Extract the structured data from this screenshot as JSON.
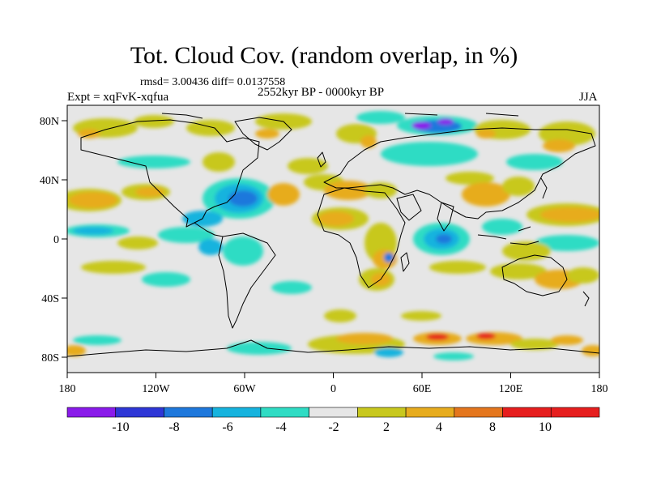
{
  "title": "Tot. Cloud Cov. (random overlap, in %)",
  "stats": "rmsd= 3.00436 diff= 0.0137558",
  "experiment": "Expt = xqFvK-xqfua",
  "period": "2552kyr BP - 0000kyr BP",
  "season": "JJA",
  "lat_ticks": [
    "80N",
    "40N",
    "0",
    "40S",
    "80S"
  ],
  "lon_ticks": [
    "180",
    "120W",
    "60W",
    "0",
    "60E",
    "120E",
    "180"
  ],
  "colorbar": {
    "labels": [
      "-10",
      "-8",
      "-6",
      "-4",
      "-2",
      "2",
      "4",
      "8",
      "10"
    ],
    "colors": [
      "#8a1bea",
      "#2e36d6",
      "#1e78dc",
      "#16b3de",
      "#2fdcc4",
      "#e6e6e6",
      "#c8c81e",
      "#e7ac1e",
      "#e4761d",
      "#e61e1e",
      "#e61e1e"
    ]
  },
  "colors": {
    "background_field": "#e6e6e6",
    "coastline": "#000000"
  }
}
